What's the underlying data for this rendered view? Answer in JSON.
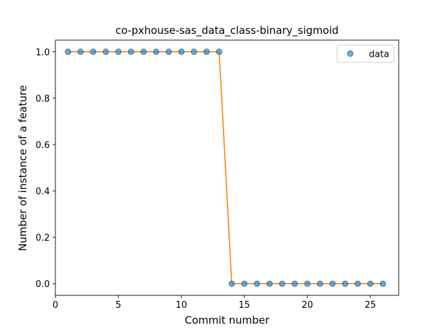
{
  "chart_data": {
    "type": "scatter",
    "title": "co-pxhouse-sas_data_class-binary_sigmoid",
    "xlabel": "Commit number",
    "ylabel": "Number of instance of a feature",
    "xlim": [
      0.0,
      27.25
    ],
    "ylim": [
      -0.05,
      1.05
    ],
    "xticks": [
      0,
      5,
      10,
      15,
      20,
      25
    ],
    "yticks": [
      0.0,
      0.2,
      0.4,
      0.6,
      0.8,
      1.0
    ],
    "xtick_labels": [
      "0",
      "5",
      "10",
      "15",
      "20",
      "25"
    ],
    "ytick_labels": [
      "0.0",
      "0.2",
      "0.4",
      "0.6",
      "0.8",
      "1.0"
    ],
    "grid": false,
    "legend": {
      "position": "top-right",
      "entries": [
        "data"
      ]
    },
    "series": [
      {
        "name": "data",
        "kind": "scatter",
        "color": "#1f77b4",
        "x": [
          1,
          2,
          3,
          4,
          5,
          6,
          7,
          8,
          9,
          10,
          11,
          12,
          13,
          14,
          15,
          16,
          17,
          18,
          19,
          20,
          21,
          22,
          23,
          24,
          25,
          26
        ],
        "y": [
          1,
          1,
          1,
          1,
          1,
          1,
          1,
          1,
          1,
          1,
          1,
          1,
          1,
          0,
          0,
          0,
          0,
          0,
          0,
          0,
          0,
          0,
          0,
          0,
          0,
          0
        ]
      },
      {
        "kind": "line",
        "color": "#ff7f0e",
        "x": [
          1,
          2,
          3,
          4,
          5,
          6,
          7,
          8,
          9,
          10,
          11,
          12,
          13,
          14,
          15,
          16,
          17,
          18,
          19,
          20,
          21,
          22,
          23,
          24,
          25,
          26
        ],
        "y": [
          1,
          1,
          1,
          1,
          1,
          1,
          1,
          1,
          1,
          1,
          1,
          1,
          1,
          0,
          0,
          0,
          0,
          0,
          0,
          0,
          0,
          0,
          0,
          0,
          0,
          0
        ]
      }
    ]
  }
}
